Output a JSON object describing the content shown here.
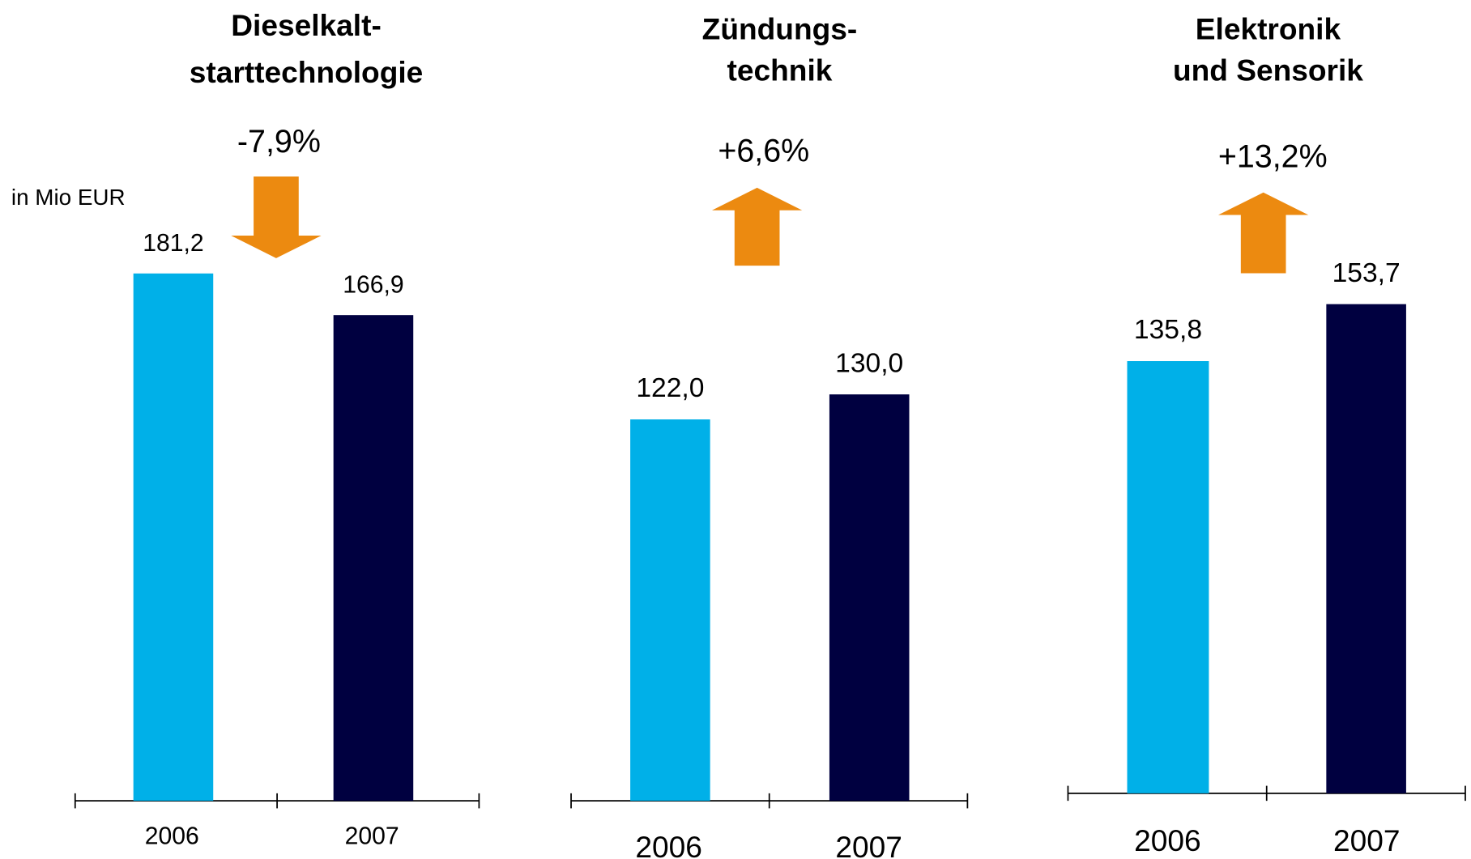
{
  "unit_label": "in Mio EUR",
  "chart_data": [
    {
      "type": "bar",
      "title": [
        "Dieselkalt-",
        "starttechnologie"
      ],
      "annotation": "-7,9%",
      "arrow": "down",
      "categories": [
        "2006",
        "2007"
      ],
      "values": [
        181.2,
        166.9
      ],
      "value_labels": [
        "181,2",
        "166,9"
      ],
      "colors": [
        "#00b0e8",
        "#000040"
      ],
      "ylim": [
        0,
        200
      ],
      "arrow_color": "#ec8a10"
    },
    {
      "type": "bar",
      "title": [
        "Zündungs-",
        "technik"
      ],
      "annotation": "+6,6%",
      "arrow": "up",
      "categories": [
        "2006",
        "2007"
      ],
      "values": [
        122.0,
        130.0
      ],
      "value_labels": [
        "122,0",
        "130,0"
      ],
      "colors": [
        "#00b0e8",
        "#000040"
      ],
      "ylim": [
        0,
        200
      ],
      "arrow_color": "#ec8a10"
    },
    {
      "type": "bar",
      "title": [
        "Elektronik",
        "und Sensorik"
      ],
      "annotation": "+13,2%",
      "arrow": "up",
      "categories": [
        "2006",
        "2007"
      ],
      "values": [
        135.8,
        153.7
      ],
      "value_labels": [
        "135,8",
        "153,7"
      ],
      "colors": [
        "#00b0e8",
        "#000040"
      ],
      "ylim": [
        0,
        200
      ],
      "arrow_color": "#ec8a10"
    }
  ]
}
